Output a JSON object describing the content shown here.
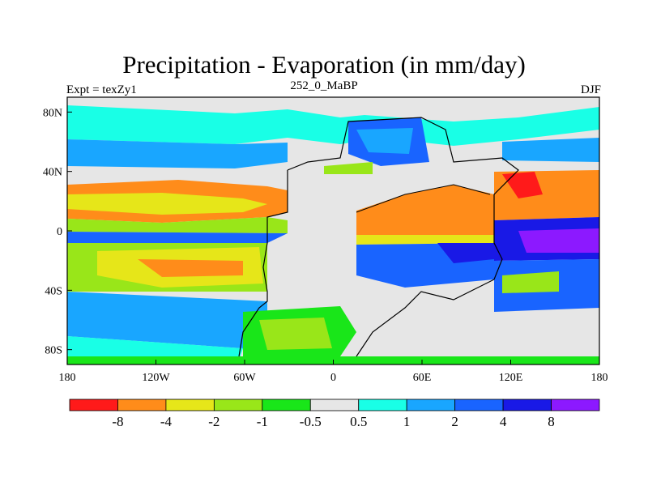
{
  "header": {
    "title": "Precipitation - Evaporation (in mm/day)",
    "left_label": "Expt = texZy1",
    "center_label": "252_0_MaBP",
    "right_label": "DJF"
  },
  "map": {
    "lon_range": [
      -180,
      180
    ],
    "lat_range": [
      -90,
      90
    ],
    "x_ticks": [
      {
        "value": -180,
        "label": "180"
      },
      {
        "value": -120,
        "label": "120W"
      },
      {
        "value": -60,
        "label": "60W"
      },
      {
        "value": 0,
        "label": "0"
      },
      {
        "value": 60,
        "label": "60E"
      },
      {
        "value": 120,
        "label": "120E"
      },
      {
        "value": 180,
        "label": "180"
      }
    ],
    "y_ticks": [
      {
        "value": 80,
        "label": "80N"
      },
      {
        "value": 40,
        "label": "40N"
      },
      {
        "value": 0,
        "label": "0"
      },
      {
        "value": -40,
        "label": "40S"
      },
      {
        "value": -80,
        "label": "80S"
      }
    ]
  },
  "colorbar": {
    "colors": [
      "#ff1a1a",
      "#ff8c1a",
      "#e6e619",
      "#99e619",
      "#19e619",
      "#e6e6e6",
      "#19ffe6",
      "#19a6ff",
      "#1964ff",
      "#1919e6",
      "#8c19ff"
    ],
    "labels": [
      "-8",
      "-4",
      "-2",
      "-1",
      "-0.5",
      "0.5",
      "1",
      "2",
      "4",
      "8"
    ]
  }
}
